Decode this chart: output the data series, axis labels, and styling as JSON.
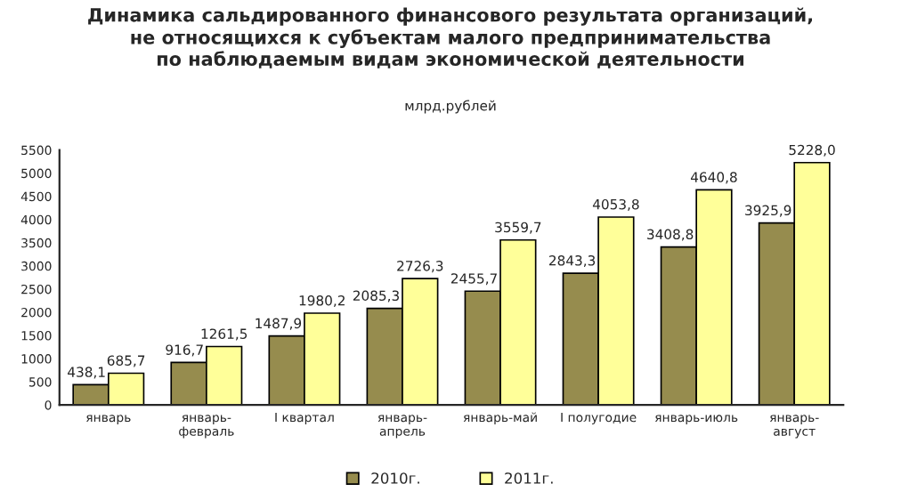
{
  "chart_data": {
    "type": "bar",
    "title": "Динамика сальдированного финансового результата организаций,\nне относящихся к субъектам малого предпринимательства\nпо наблюдаемым видам экономической деятельности",
    "subtitle": "млрд.рублей",
    "categories": [
      "январь",
      "январь-\nфевраль",
      "I квартал",
      "январь-\nапрель",
      "январь-май",
      "I полугодие",
      "январь-июль",
      "январь-\nавгуст"
    ],
    "series": [
      {
        "name": "2010г.",
        "color": "#968c4e",
        "values": [
          438.1,
          916.7,
          1487.9,
          2085.3,
          2455.7,
          2843.3,
          3408.8,
          3925.9
        ],
        "value_labels": [
          "438,1",
          "916,7",
          "1487,9",
          "2085,3",
          "2455,7",
          "2843,3",
          "3408,8",
          "3925,9"
        ]
      },
      {
        "name": "2011г.",
        "color": "#ffff99",
        "values": [
          685.7,
          1261.5,
          1980.2,
          2726.3,
          3559.7,
          4053.8,
          4640.8,
          5228.0
        ],
        "value_labels": [
          "685,7",
          "1261,5",
          "1980,2",
          "2726,3",
          "3559,7",
          "4053,8",
          "4640,8",
          "5228,0"
        ]
      }
    ],
    "ylim": [
      0,
      5500
    ],
    "yticks": [
      0,
      500,
      1000,
      1500,
      2000,
      2500,
      3000,
      3500,
      4000,
      4500,
      5000,
      5500
    ],
    "grid": false,
    "legend": "bottom"
  }
}
